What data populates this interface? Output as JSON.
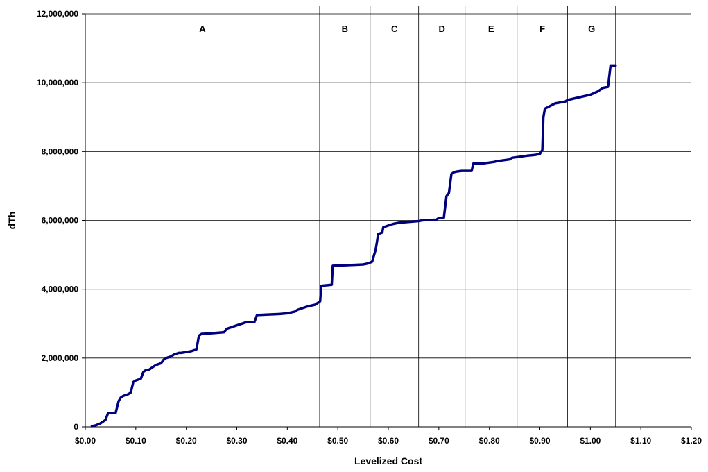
{
  "chart_data": {
    "type": "line",
    "title": "",
    "xlabel": "Levelized Cost",
    "ylabel": "dTh",
    "xlim": [
      0,
      1.2
    ],
    "ylim": [
      0,
      12000000
    ],
    "x_ticks": [
      0,
      0.1,
      0.2,
      0.3,
      0.4,
      0.5,
      0.6,
      0.7,
      0.8,
      0.9,
      1.0,
      1.1,
      1.2
    ],
    "x_tick_labels": [
      "$0.00",
      "$0.10",
      "$0.20",
      "$0.30",
      "$0.40",
      "$0.50",
      "$0.60",
      "$0.70",
      "$0.80",
      "$0.90",
      "$1.00",
      "$1.10",
      "$1.20"
    ],
    "y_ticks": [
      0,
      2000000,
      4000000,
      6000000,
      8000000,
      10000000,
      12000000
    ],
    "y_tick_labels": [
      "0",
      "2,000,000",
      "4,000,000",
      "6,000,000",
      "8,000,000",
      "10,000,000",
      "12,000,000"
    ],
    "grid": "horizontal",
    "line_color": "#00007f",
    "band_boundaries": [
      0.464,
      0.564,
      0.66,
      0.752,
      0.855,
      0.955,
      1.05
    ],
    "bands": [
      {
        "label": "A",
        "x_start": 0,
        "x_end": 0.464
      },
      {
        "label": "B",
        "x_start": 0.464,
        "x_end": 0.564
      },
      {
        "label": "C",
        "x_start": 0.564,
        "x_end": 0.66
      },
      {
        "label": "D",
        "x_start": 0.66,
        "x_end": 0.752
      },
      {
        "label": "E",
        "x_start": 0.752,
        "x_end": 0.855
      },
      {
        "label": "F",
        "x_start": 0.855,
        "x_end": 0.955
      },
      {
        "label": "G",
        "x_start": 0.955,
        "x_end": 1.05
      }
    ],
    "series": [
      {
        "x": [
          0.013,
          0.02,
          0.03,
          0.04,
          0.045,
          0.05,
          0.06,
          0.066,
          0.07,
          0.075,
          0.085,
          0.09,
          0.095,
          0.1,
          0.11,
          0.115,
          0.12,
          0.125,
          0.135,
          0.14,
          0.15,
          0.155,
          0.16,
          0.17,
          0.175,
          0.185,
          0.19,
          0.21,
          0.22,
          0.225,
          0.23,
          0.25,
          0.275,
          0.28,
          0.29,
          0.3,
          0.31,
          0.32,
          0.335,
          0.34,
          0.37,
          0.385,
          0.4,
          0.415,
          0.42,
          0.44,
          0.455,
          0.465,
          0.467,
          0.488,
          0.49,
          0.52,
          0.55,
          0.56,
          0.568,
          0.57,
          0.575,
          0.58,
          0.588,
          0.59,
          0.6,
          0.61,
          0.62,
          0.635,
          0.66,
          0.667,
          0.68,
          0.695,
          0.7,
          0.71,
          0.715,
          0.72,
          0.725,
          0.73,
          0.735,
          0.745,
          0.765,
          0.768,
          0.79,
          0.8,
          0.81,
          0.815,
          0.83,
          0.84,
          0.845,
          0.86,
          0.875,
          0.89,
          0.9,
          0.905,
          0.907,
          0.91,
          0.93,
          0.95,
          0.955,
          0.97,
          0.985,
          1.0,
          1.015,
          1.025,
          1.035,
          1.04,
          1.05
        ],
        "y": [
          20000,
          40000,
          100000,
          200000,
          400000,
          400000,
          400000,
          750000,
          850000,
          900000,
          950000,
          1000000,
          1300000,
          1350000,
          1400000,
          1600000,
          1650000,
          1650000,
          1750000,
          1800000,
          1850000,
          1950000,
          2000000,
          2050000,
          2100000,
          2150000,
          2150000,
          2200000,
          2250000,
          2650000,
          2700000,
          2720000,
          2750000,
          2850000,
          2900000,
          2950000,
          3000000,
          3050000,
          3050000,
          3250000,
          3270000,
          3280000,
          3300000,
          3350000,
          3400000,
          3500000,
          3550000,
          3650000,
          4100000,
          4130000,
          4680000,
          4700000,
          4720000,
          4750000,
          4800000,
          4900000,
          5150000,
          5600000,
          5650000,
          5800000,
          5850000,
          5900000,
          5930000,
          5950000,
          5980000,
          6000000,
          6010000,
          6020000,
          6070000,
          6080000,
          6700000,
          6800000,
          7350000,
          7400000,
          7420000,
          7440000,
          7440000,
          7650000,
          7660000,
          7680000,
          7700000,
          7720000,
          7750000,
          7770000,
          7820000,
          7850000,
          7880000,
          7900000,
          7930000,
          8050000,
          9000000,
          9250000,
          9400000,
          9450000,
          9500000,
          9550000,
          9600000,
          9650000,
          9750000,
          9850000,
          9880000,
          10500000,
          10500000
        ]
      }
    ]
  }
}
